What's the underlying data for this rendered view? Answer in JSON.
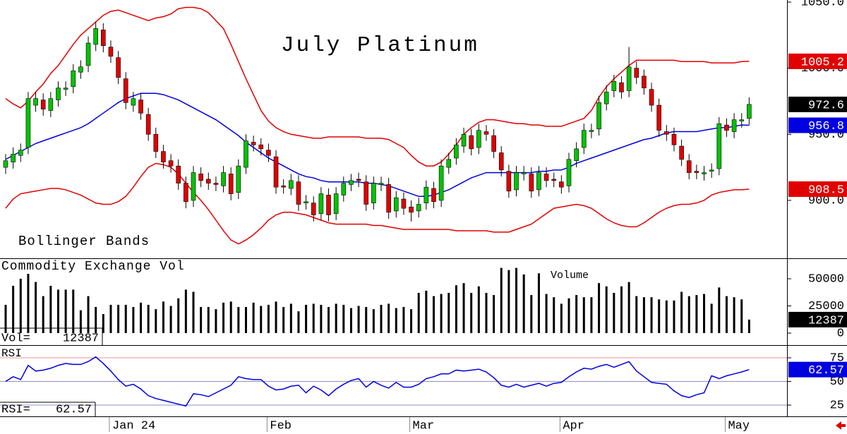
{
  "chart_data": [
    {
      "type": "candlestick",
      "title": "July Platinum",
      "annotation": "Bollinger Bands",
      "categories": [
        null,
        null,
        null,
        null,
        null,
        null,
        null,
        null,
        null,
        null,
        null,
        null,
        null,
        null,
        "Jan 24",
        null,
        null,
        null,
        null,
        null,
        null,
        null,
        null,
        null,
        null,
        null,
        null,
        null,
        null,
        null,
        null,
        null,
        null,
        null,
        null,
        "Feb",
        null,
        null,
        null,
        null,
        null,
        null,
        null,
        null,
        null,
        null,
        null,
        null,
        null,
        null,
        null,
        null,
        null,
        null,
        "Mar",
        null,
        null,
        null,
        null,
        null,
        null,
        null,
        null,
        null,
        null,
        null,
        null,
        null,
        null,
        null,
        null,
        null,
        null,
        null,
        "Apr",
        null,
        null,
        null,
        null,
        null,
        null,
        null,
        null,
        null,
        null,
        null,
        null,
        null,
        null,
        null,
        null,
        null,
        null,
        null,
        null,
        null,
        "May",
        null,
        null,
        null
      ],
      "open": [
        925,
        929,
        934,
        940,
        972,
        976,
        968,
        976,
        984,
        986,
        997,
        1002,
        1018,
        1029,
        1016,
        1008,
        992,
        972,
        976,
        965,
        950,
        937,
        930,
        926,
        913,
        900,
        920,
        916,
        913,
        911,
        920,
        906,
        925,
        944,
        942,
        938,
        933,
        911,
        909,
        914,
        898,
        898,
        890,
        904,
        890,
        904,
        912,
        916,
        914,
        898,
        912,
        912,
        892,
        901,
        895,
        892,
        898,
        909,
        900,
        925,
        932,
        941,
        949,
        940,
        952,
        949,
        936,
        922,
        908,
        920,
        920,
        908,
        920,
        916,
        914,
        911,
        930,
        940,
        952,
        954,
        973,
        983,
        989,
        983,
        1000,
        994,
        984,
        972,
        952,
        950,
        941,
        930,
        922,
        920,
        922,
        924,
        957,
        952,
        960,
        962
      ],
      "high": [
        935,
        940,
        943,
        982,
        982,
        981,
        982,
        990,
        990,
        1003,
        1006,
        1024,
        1035,
        1034,
        1021,
        1013,
        997,
        982,
        981,
        970,
        955,
        942,
        935,
        931,
        918,
        926,
        925,
        921,
        918,
        926,
        925,
        931,
        950,
        949,
        947,
        943,
        938,
        916,
        920,
        919,
        904,
        903,
        910,
        909,
        910,
        918,
        920,
        921,
        919,
        918,
        918,
        917,
        907,
        906,
        900,
        902,
        915,
        914,
        931,
        936,
        947,
        955,
        954,
        958,
        957,
        954,
        941,
        927,
        926,
        926,
        925,
        926,
        925,
        921,
        919,
        936,
        944,
        958,
        958,
        979,
        987,
        995,
        994,
        1016,
        1005,
        999,
        989,
        977,
        957,
        955,
        946,
        935,
        927,
        926,
        928,
        963,
        962,
        966,
        966,
        978
      ],
      "low": [
        920,
        924,
        929,
        935,
        967,
        964,
        963,
        971,
        979,
        981,
        992,
        997,
        1013,
        1012,
        1004,
        988,
        969,
        967,
        961,
        945,
        932,
        924,
        921,
        908,
        894,
        895,
        910,
        908,
        907,
        906,
        900,
        901,
        920,
        937,
        934,
        929,
        905,
        905,
        904,
        892,
        893,
        884,
        885,
        884,
        885,
        899,
        907,
        910,
        892,
        893,
        907,
        886,
        887,
        889,
        884,
        887,
        893,
        894,
        895,
        920,
        927,
        936,
        934,
        935,
        945,
        932,
        918,
        902,
        903,
        915,
        902,
        903,
        910,
        910,
        905,
        906,
        925,
        935,
        947,
        949,
        968,
        978,
        977,
        978,
        988,
        980,
        967,
        948,
        945,
        937,
        926,
        916,
        916,
        915,
        917,
        919,
        948,
        947,
        955,
        957
      ],
      "close": [
        930,
        935,
        938,
        977,
        977,
        969,
        977,
        985,
        985,
        998,
        1001,
        1019,
        1030,
        1017,
        1009,
        993,
        974,
        977,
        966,
        950,
        937,
        929,
        926,
        913,
        899,
        921,
        915,
        913,
        912,
        921,
        905,
        926,
        945,
        942,
        939,
        934,
        910,
        910,
        915,
        897,
        899,
        889,
        905,
        889,
        905,
        913,
        915,
        915,
        897,
        913,
        913,
        891,
        902,
        894,
        891,
        897,
        910,
        899,
        926,
        931,
        942,
        950,
        939,
        953,
        950,
        937,
        923,
        907,
        921,
        921,
        907,
        921,
        915,
        915,
        910,
        931,
        939,
        953,
        953,
        974,
        982,
        990,
        982,
        1001,
        993,
        985,
        972,
        953,
        950,
        942,
        931,
        921,
        921,
        921,
        923,
        958,
        953,
        961,
        961,
        972.6
      ],
      "up_color": "#00c400",
      "down_color": "#e00000",
      "series": [
        {
          "color": "#e00000",
          "values": [
            977,
            973,
            970,
            975,
            982,
            988,
            996,
            1002,
            1010,
            1018,
            1025,
            1030,
            1035,
            1040,
            1043,
            1044,
            1042,
            1040,
            1038,
            1036,
            1038,
            1039,
            1041,
            1045,
            1046,
            1046,
            1045,
            1042,
            1036,
            1030,
            1018,
            1005,
            992,
            980,
            968,
            960,
            955,
            952,
            950,
            949,
            948,
            947,
            947,
            948,
            948,
            948,
            948,
            948,
            947,
            947,
            947,
            946,
            943,
            940,
            934,
            929,
            926,
            926,
            929,
            935,
            942,
            950,
            955,
            959,
            961,
            961,
            960,
            959,
            958,
            958,
            957,
            957,
            956,
            956,
            956,
            958,
            960,
            962,
            968,
            978,
            986,
            992,
            997,
            1002,
            1006,
            1006,
            1006,
            1006,
            1006,
            1006,
            1005,
            1005,
            1005,
            1005,
            1004,
            1004,
            1004,
            1004,
            1005,
            1005.2
          ]
        },
        {
          "color": "#0000e0",
          "values": [
            931,
            934,
            937,
            940,
            943,
            945,
            947,
            949,
            951,
            953,
            955,
            958,
            962,
            966,
            970,
            974,
            977,
            979,
            981,
            981,
            981,
            980,
            978,
            976,
            973,
            970,
            967,
            964,
            961,
            957,
            953,
            949,
            944,
            940,
            936,
            932,
            929,
            926,
            923,
            920,
            918,
            917,
            915,
            914,
            914,
            914,
            914,
            914,
            913,
            913,
            912,
            911,
            909,
            907,
            905,
            903,
            903,
            904,
            906,
            908,
            911,
            914,
            917,
            919,
            921,
            921,
            921,
            921,
            921,
            921,
            921,
            922,
            922,
            923,
            923,
            925,
            928,
            930,
            932,
            934,
            936,
            938,
            940,
            942,
            944,
            946,
            947,
            949,
            951,
            952,
            952,
            952,
            952,
            953,
            954,
            955,
            955,
            956,
            957,
            956.8
          ]
        },
        {
          "color": "#e00000",
          "values": [
            894,
            901,
            905,
            906,
            907,
            908,
            909,
            909,
            908,
            906,
            904,
            901,
            898,
            897,
            897,
            899,
            903,
            910,
            918,
            925,
            928,
            927,
            925,
            920,
            913,
            906,
            900,
            893,
            885,
            877,
            870,
            867,
            870,
            874,
            879,
            885,
            889,
            891,
            891,
            890,
            889,
            887,
            885,
            883,
            882,
            882,
            882,
            882,
            882,
            881,
            881,
            880,
            879,
            878,
            878,
            878,
            878,
            878,
            878,
            878,
            877,
            877,
            877,
            877,
            877,
            876,
            876,
            876,
            878,
            880,
            882,
            886,
            890,
            894,
            895,
            896,
            897,
            896,
            894,
            890,
            886,
            883,
            881,
            880,
            880,
            883,
            887,
            891,
            894,
            896,
            897,
            897,
            898,
            900,
            904,
            906,
            907,
            908,
            908,
            908.5
          ]
        }
      ],
      "ylim": [
        856.7,
        1051.6
      ],
      "yticks": [
        {
          "value": 1050,
          "label": "1050.0"
        },
        {
          "value": 1000,
          "label": "1000.0"
        },
        {
          "value": 950,
          "label": "950.0"
        },
        {
          "value": 900,
          "label": "900.0"
        }
      ]
    },
    {
      "type": "bar",
      "title": "Commodity Exchange Vol",
      "annotation": "Volume",
      "last_label": "Vol=",
      "color": "#000000",
      "values": [
        26000,
        43500,
        50000,
        54500,
        47000,
        34000,
        43500,
        40000,
        40000,
        40000,
        21000,
        34000,
        24000,
        17500,
        26000,
        26000,
        26000,
        24000,
        28000,
        26000,
        22000,
        29000,
        25000,
        32000,
        40000,
        38000,
        24000,
        24000,
        22000,
        28000,
        29000,
        24000,
        24000,
        28000,
        25000,
        26000,
        29000,
        24000,
        27000,
        20000,
        26000,
        27000,
        26000,
        24000,
        27000,
        26000,
        23000,
        25000,
        24000,
        22000,
        26000,
        27000,
        23000,
        24000,
        22000,
        37000,
        39000,
        34000,
        36000,
        37000,
        44000,
        46000,
        37000,
        43000,
        37000,
        35000,
        60000,
        58000,
        60000,
        54000,
        35000,
        55000,
        36000,
        33000,
        27000,
        32000,
        35000,
        33000,
        33000,
        46000,
        43000,
        37000,
        43000,
        47000,
        34000,
        33000,
        33000,
        31000,
        30000,
        30000,
        38000,
        34000,
        35000,
        36000,
        27000,
        42000,
        34000,
        33000,
        31000,
        12387
      ],
      "ylim": [
        -10400,
        68200
      ],
      "yticks": [
        50000,
        25000,
        0
      ]
    },
    {
      "type": "line",
      "title": "RSI",
      "last_label": "RSI=",
      "color": "#0000e0",
      "values": [
        50,
        55,
        52,
        67,
        61,
        62,
        64,
        67,
        69,
        68,
        68,
        71,
        76,
        69,
        61,
        52,
        45,
        47,
        42,
        35,
        32,
        30,
        28,
        26,
        24,
        37,
        36,
        34,
        38,
        42,
        46,
        55,
        53,
        52,
        52,
        45,
        41,
        42,
        45,
        46,
        38,
        45,
        41,
        35,
        42,
        47,
        51,
        53,
        44,
        50,
        46,
        43,
        49,
        44,
        44,
        47,
        53,
        55,
        58,
        58,
        62,
        61,
        62,
        63,
        60,
        54,
        46,
        44,
        47,
        44,
        46,
        48,
        45,
        48,
        49,
        55,
        60,
        64,
        63,
        66,
        68,
        65,
        68,
        71,
        61,
        55,
        49,
        48,
        47,
        40,
        35,
        33,
        36,
        38,
        56,
        53,
        56,
        58,
        60,
        62.57
      ],
      "ylim": [
        13.1,
        87.7
      ],
      "yticks": [
        75,
        50,
        25
      ],
      "grid": true,
      "grid_colors": [
        "#f09090",
        "#9090c8",
        "#9090c8"
      ]
    }
  ]
}
